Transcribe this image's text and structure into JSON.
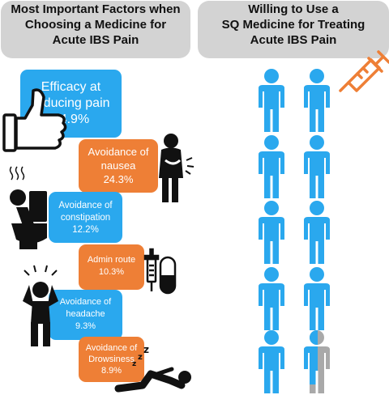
{
  "left_panel": {
    "title_lines": [
      "Most Important Factors when",
      "Choosing a Medicine for",
      "Acute IBS Pain"
    ],
    "factors": [
      {
        "label_lines": [
          "Efficacy at",
          "reducing pain"
        ],
        "value": "34.9%",
        "color": "#2aa8ee",
        "icon": "thumbs-up-icon"
      },
      {
        "label_lines": [
          "Avoidance of",
          "nausea"
        ],
        "value": "24.3%",
        "color": "#ee7f36",
        "icon": "nauseous-person-icon"
      },
      {
        "label_lines": [
          "Avoidance of",
          "constipation"
        ],
        "value": "12.2%",
        "color": "#2aa8ee",
        "icon": "person-on-toilet-icon"
      },
      {
        "label_lines": [
          "Admin route"
        ],
        "value": "10.3%",
        "color": "#ee7f36",
        "icon": "syringe-and-pill-icon"
      },
      {
        "label_lines": [
          "Avoidance of",
          "headache"
        ],
        "value": "9.3%",
        "color": "#2aa8ee",
        "icon": "headache-person-icon"
      },
      {
        "label_lines": [
          "Avoidance of",
          "Drowsiness"
        ],
        "value": "8.9%",
        "color": "#ee7f36",
        "icon": "sleeping-person-icon"
      }
    ]
  },
  "right_panel": {
    "title_lines": [
      "Willing to Use a",
      "SQ Medicine for Treating",
      "Acute IBS Pain"
    ],
    "icon": "syringe-icon",
    "people_icon": "person-icon",
    "person_color": "#2aa8ee",
    "partial_fill_color": "#a9a9a9",
    "filled_fraction": 0.95
  }
}
